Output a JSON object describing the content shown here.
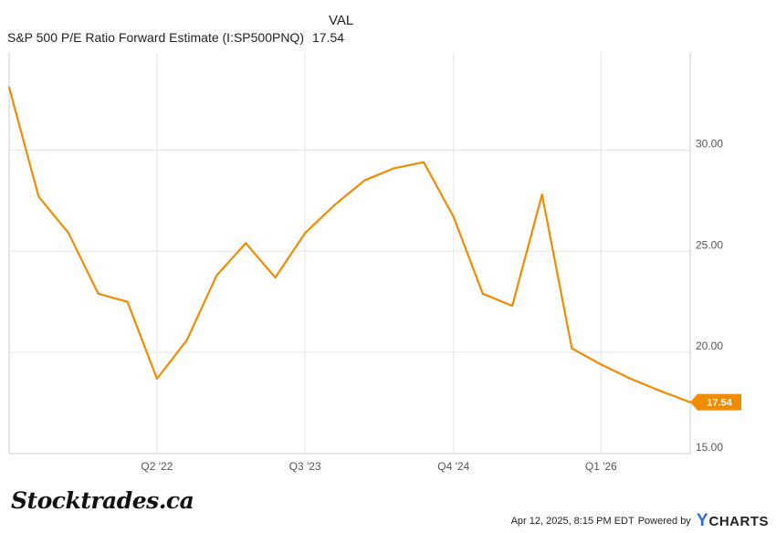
{
  "legend": {
    "column_header": "VAL",
    "series_name": "S&P 500 P/E Ratio Forward Estimate (I:SP500PNQ)",
    "series_value": "17.54"
  },
  "chart_data": {
    "type": "line",
    "title": "",
    "xlabel": "",
    "ylabel": "",
    "x": [
      "2021-03-31",
      "2021-06-30",
      "2021-09-30",
      "2021-12-31",
      "2022-03-31",
      "2022-06-30",
      "2022-09-30",
      "2022-12-31",
      "2023-03-31",
      "2023-06-30",
      "2023-09-30",
      "2023-12-31",
      "2024-03-31",
      "2024-06-30",
      "2024-09-30",
      "2024-12-31",
      "2025-03-31",
      "2025-06-30",
      "2025-09-30",
      "2025-12-31",
      "2026-03-31",
      "2026-06-30",
      "2026-09-30",
      "2026-12-31"
    ],
    "series": [
      {
        "name": "S&P 500 P/E Ratio Forward Estimate (I:SP500PNQ)",
        "color": "#f08c00",
        "values": [
          33.1,
          27.7,
          25.9,
          22.9,
          22.5,
          18.7,
          20.6,
          23.8,
          25.4,
          23.7,
          25.9,
          27.3,
          28.5,
          29.1,
          29.4,
          26.7,
          22.9,
          22.3,
          27.8,
          20.2,
          19.4,
          18.7,
          18.1,
          17.54
        ]
      }
    ],
    "end_label": "17.54",
    "ylim": [
      15,
      34.8
    ],
    "yticks": [
      15,
      20,
      25,
      30
    ],
    "ytick_labels": [
      "15.00",
      "20.00",
      "25.00",
      "30.00"
    ],
    "xlim": [
      "2021-03-31",
      "2026-12-31"
    ],
    "xticks": [
      "2022-06-30",
      "2023-09-30",
      "2024-12-31",
      "2026-03-31"
    ],
    "xtick_labels": [
      "Q2 '22",
      "Q3 '23",
      "Q4 '24",
      "Q1 '26"
    ],
    "grid": true,
    "y_axis_position": "right",
    "legend_position": "top-left"
  },
  "footer": {
    "brand": "Stocktrades.ca",
    "timestamp": "Apr 12, 2025, 8:15 PM EDT",
    "powered_by": "Powered by",
    "logo_y": "Y",
    "logo_rest": "CHARTS"
  }
}
